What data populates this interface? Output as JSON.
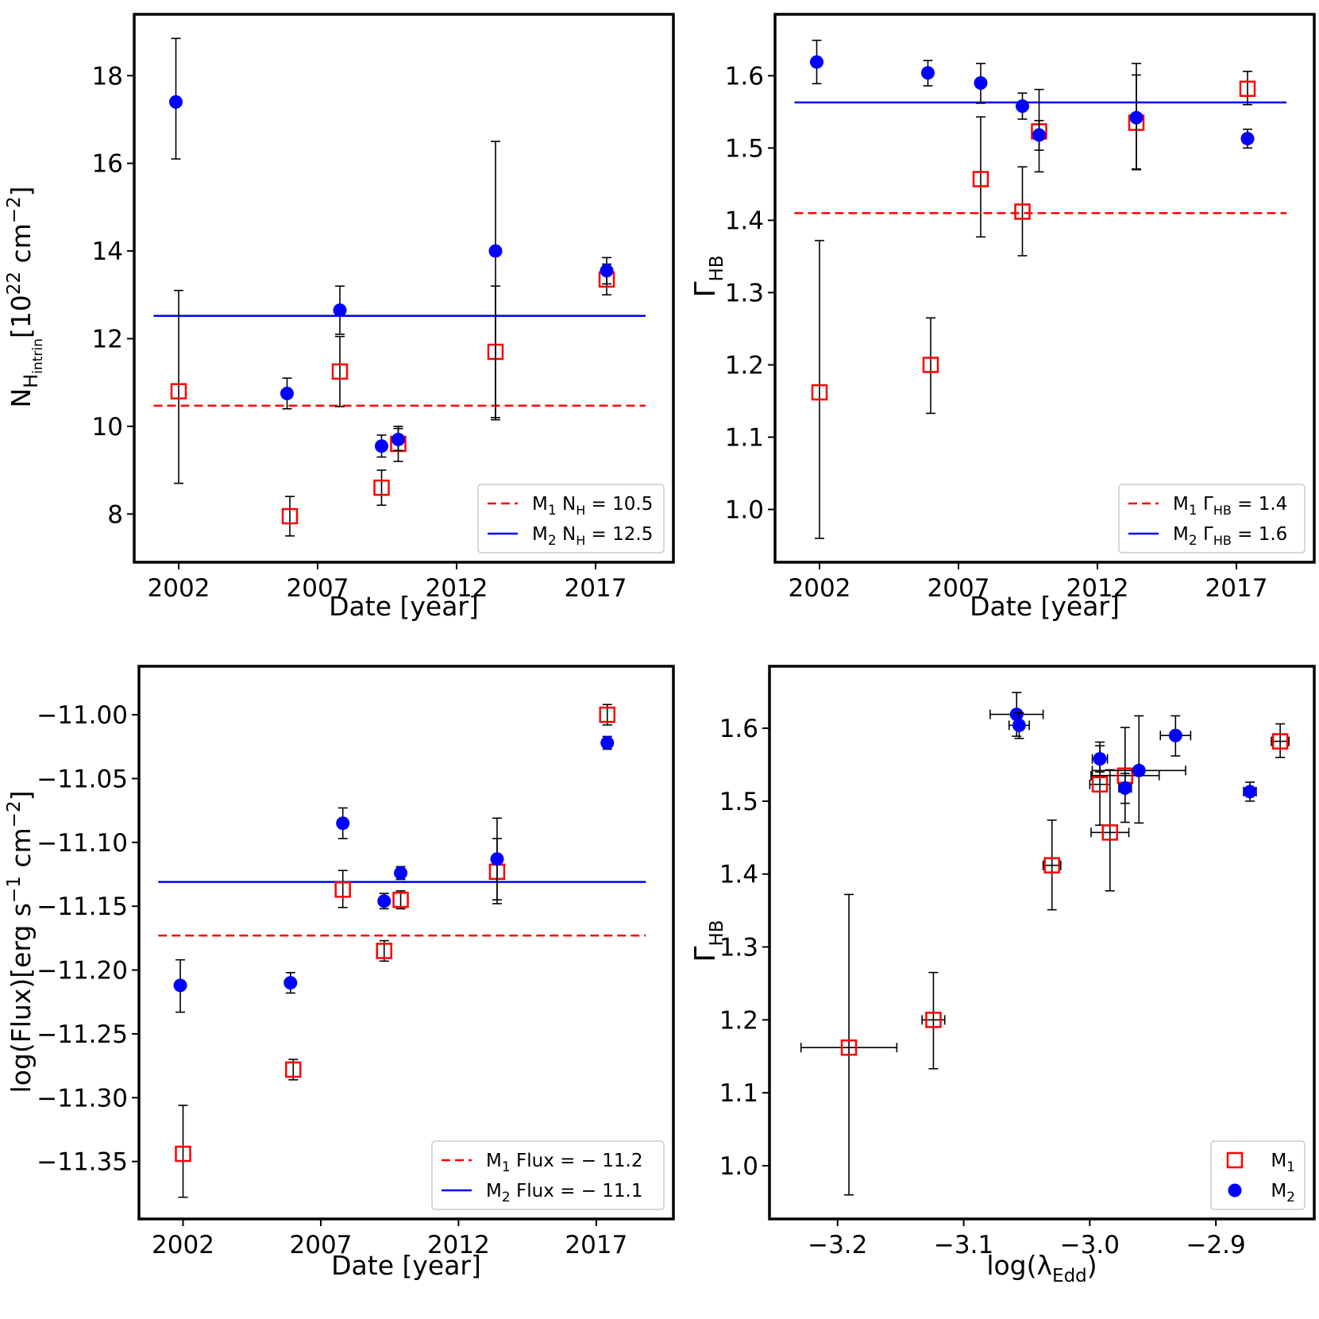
{
  "chart_data": [
    {
      "id": "nh",
      "type": "scatter",
      "xlabel": "Date [year]",
      "ylabel": "N_H_intrin [10^22 cm^-2]",
      "ylabel_parts": {
        "main": "N",
        "sub1": "H",
        "sub2": "intrin",
        "unit_pre": "[10",
        "unit_exp": "22",
        "unit_mid": " cm",
        "unit_exp2": "−2",
        "unit_post": "]"
      },
      "xlim": [
        2000.4,
        2019.8
      ],
      "ylim": [
        6.9,
        19.4
      ],
      "xticks": [
        2002,
        2007,
        2012,
        2017
      ],
      "xtick_labels": [
        "2002",
        "2007",
        "2012",
        "2017"
      ],
      "yticks": [
        8,
        10,
        12,
        14,
        16,
        18
      ],
      "ytick_labels": [
        "8",
        "10",
        "12",
        "14",
        "16",
        "18"
      ],
      "series": [
        {
          "name": "M1",
          "marker": "square",
          "color": "#ff0000",
          "points": [
            {
              "x": 2002.0,
              "y": 10.8,
              "ylo": 8.7,
              "yhi": 13.1
            },
            {
              "x": 2006.0,
              "y": 7.95,
              "ylo": 7.5,
              "yhi": 8.4
            },
            {
              "x": 2007.8,
              "y": 11.25,
              "ylo": 10.45,
              "yhi": 12.05
            },
            {
              "x": 2009.3,
              "y": 8.6,
              "ylo": 8.2,
              "yhi": 9.0
            },
            {
              "x": 2009.9,
              "y": 9.6,
              "ylo": 9.2,
              "yhi": 10.0
            },
            {
              "x": 2013.4,
              "y": 11.7,
              "ylo": 10.2,
              "yhi": 13.2
            },
            {
              "x": 2017.4,
              "y": 13.35,
              "ylo": 13.0,
              "yhi": 13.7
            }
          ]
        },
        {
          "name": "M2",
          "marker": "circle",
          "color": "#0000ff",
          "points": [
            {
              "x": 2001.9,
              "y": 17.4,
              "ylo": 16.1,
              "yhi": 18.85
            },
            {
              "x": 2005.9,
              "y": 10.75,
              "ylo": 10.4,
              "yhi": 11.1
            },
            {
              "x": 2007.8,
              "y": 12.65,
              "ylo": 12.1,
              "yhi": 13.2
            },
            {
              "x": 2009.3,
              "y": 9.55,
              "ylo": 9.3,
              "yhi": 9.8
            },
            {
              "x": 2009.9,
              "y": 9.7,
              "ylo": 9.45,
              "yhi": 9.95
            },
            {
              "x": 2013.4,
              "y": 14.0,
              "ylo": 10.15,
              "yhi": 16.5
            },
            {
              "x": 2017.4,
              "y": 13.55,
              "ylo": 13.25,
              "yhi": 13.85
            }
          ]
        }
      ],
      "hlines": [
        {
          "name": "M1",
          "y": 10.47,
          "color": "#ff0000",
          "style": "dashed",
          "x0": 2001.1,
          "x1": 2018.8
        },
        {
          "name": "M2",
          "y": 12.52,
          "color": "#0000ff",
          "style": "solid",
          "x0": 2001.1,
          "x1": 2018.8
        }
      ],
      "legend": {
        "position": "lower-right",
        "entries": [
          {
            "series": "M1",
            "style": "dashed",
            "color": "#ff0000",
            "text_pre": "M",
            "text_sub": "1",
            "text_mid": " N",
            "text_sub2": "H",
            "text_post": " = 10.5"
          },
          {
            "series": "M2",
            "style": "solid",
            "color": "#0000ff",
            "text_pre": "M",
            "text_sub": "2",
            "text_mid": " N",
            "text_sub2": "H",
            "text_post": " = 12.5"
          }
        ]
      }
    },
    {
      "id": "gamma",
      "type": "scatter",
      "xlabel": "Date [year]",
      "ylabel": "Γ_HB",
      "ylabel_parts": {
        "main": "Γ",
        "sub1": "HB"
      },
      "xlim": [
        2000.4,
        2019.8
      ],
      "ylim": [
        0.927,
        1.685
      ],
      "xticks": [
        2002,
        2007,
        2012,
        2017
      ],
      "xtick_labels": [
        "2002",
        "2007",
        "2012",
        "2017"
      ],
      "yticks": [
        1.0,
        1.1,
        1.2,
        1.3,
        1.4,
        1.5,
        1.6
      ],
      "ytick_labels": [
        "1.0",
        "1.1",
        "1.2",
        "1.3",
        "1.4",
        "1.5",
        "1.6"
      ],
      "series": [
        {
          "name": "M1",
          "marker": "square",
          "color": "#ff0000",
          "points": [
            {
              "x": 2002.0,
              "y": 1.162,
              "ylo": 0.96,
              "yhi": 1.372
            },
            {
              "x": 2006.0,
              "y": 1.2,
              "ylo": 1.133,
              "yhi": 1.265
            },
            {
              "x": 2007.8,
              "y": 1.457,
              "ylo": 1.377,
              "yhi": 1.543
            },
            {
              "x": 2009.3,
              "y": 1.412,
              "ylo": 1.351,
              "yhi": 1.474
            },
            {
              "x": 2009.9,
              "y": 1.523,
              "ylo": 1.467,
              "yhi": 1.581
            },
            {
              "x": 2013.4,
              "y": 1.535,
              "ylo": 1.471,
              "yhi": 1.601
            },
            {
              "x": 2017.4,
              "y": 1.582,
              "ylo": 1.56,
              "yhi": 1.606
            }
          ]
        },
        {
          "name": "M2",
          "marker": "circle",
          "color": "#0000ff",
          "points": [
            {
              "x": 2001.9,
              "y": 1.619,
              "ylo": 1.589,
              "yhi": 1.649
            },
            {
              "x": 2005.9,
              "y": 1.604,
              "ylo": 1.586,
              "yhi": 1.621
            },
            {
              "x": 2007.8,
              "y": 1.59,
              "ylo": 1.562,
              "yhi": 1.617
            },
            {
              "x": 2009.3,
              "y": 1.558,
              "ylo": 1.54,
              "yhi": 1.576
            },
            {
              "x": 2009.9,
              "y": 1.518,
              "ylo": 1.497,
              "yhi": 1.538
            },
            {
              "x": 2013.4,
              "y": 1.542,
              "ylo": 1.47,
              "yhi": 1.617
            },
            {
              "x": 2017.4,
              "y": 1.513,
              "ylo": 1.5,
              "yhi": 1.526
            }
          ]
        }
      ],
      "hlines": [
        {
          "name": "M1",
          "y": 1.41,
          "color": "#ff0000",
          "style": "dashed",
          "x0": 2001.1,
          "x1": 2018.8
        },
        {
          "name": "M2",
          "y": 1.563,
          "color": "#0000ff",
          "style": "solid",
          "x0": 2001.1,
          "x1": 2018.8
        }
      ],
      "legend": {
        "position": "lower-right",
        "entries": [
          {
            "series": "M1",
            "style": "dashed",
            "color": "#ff0000",
            "text_pre": "M",
            "text_sub": "1",
            "text_mid": " Γ",
            "text_sub2": "HB",
            "text_post": " = 1.4"
          },
          {
            "series": "M2",
            "style": "solid",
            "color": "#0000ff",
            "text_pre": "M",
            "text_sub": "2",
            "text_mid": " Γ",
            "text_sub2": "HB",
            "text_post": " = 1.6"
          }
        ]
      }
    },
    {
      "id": "flux",
      "type": "scatter",
      "xlabel": "Date [year]",
      "ylabel": "log(Flux)[erg s^-1 cm^-2]",
      "ylabel_parts": {
        "main": "log(Flux)[erg s",
        "exp1": "−1",
        "mid": " cm",
        "exp2": "−2",
        "post": "]"
      },
      "xlim": [
        2000.4,
        2019.8
      ],
      "ylim": [
        -11.395,
        -10.962
      ],
      "xticks": [
        2002,
        2007,
        2012,
        2017
      ],
      "xtick_labels": [
        "2002",
        "2007",
        "2012",
        "2017"
      ],
      "yticks": [
        -11.35,
        -11.3,
        -11.25,
        -11.2,
        -11.15,
        -11.1,
        -11.05,
        -11.0
      ],
      "ytick_labels": [
        "−11.35",
        "−11.30",
        "−11.25",
        "−11.20",
        "−11.15",
        "−11.10",
        "−11.05",
        "−11.00"
      ],
      "series": [
        {
          "name": "M1",
          "marker": "square",
          "color": "#ff0000",
          "points": [
            {
              "x": 2002.0,
              "y": -11.344,
              "ylo": -11.378,
              "yhi": -11.306
            },
            {
              "x": 2006.0,
              "y": -11.278,
              "ylo": -11.286,
              "yhi": -11.27
            },
            {
              "x": 2007.8,
              "y": -11.137,
              "ylo": -11.151,
              "yhi": -11.122
            },
            {
              "x": 2009.3,
              "y": -11.185,
              "ylo": -11.193,
              "yhi": -11.177
            },
            {
              "x": 2009.9,
              "y": -11.145,
              "ylo": -11.152,
              "yhi": -11.138
            },
            {
              "x": 2013.4,
              "y": -11.123,
              "ylo": -11.148,
              "yhi": -11.097
            },
            {
              "x": 2017.4,
              "y": -11.0,
              "ylo": -11.008,
              "yhi": -10.992
            }
          ]
        },
        {
          "name": "M2",
          "marker": "circle",
          "color": "#0000ff",
          "points": [
            {
              "x": 2001.9,
              "y": -11.212,
              "ylo": -11.233,
              "yhi": -11.192
            },
            {
              "x": 2005.9,
              "y": -11.21,
              "ylo": -11.218,
              "yhi": -11.202
            },
            {
              "x": 2007.8,
              "y": -11.085,
              "ylo": -11.097,
              "yhi": -11.073
            },
            {
              "x": 2009.3,
              "y": -11.146,
              "ylo": -11.152,
              "yhi": -11.14
            },
            {
              "x": 2009.9,
              "y": -11.124,
              "ylo": -11.129,
              "yhi": -11.119
            },
            {
              "x": 2013.4,
              "y": -11.113,
              "ylo": -11.145,
              "yhi": -11.081
            },
            {
              "x": 2017.4,
              "y": -11.022,
              "ylo": -11.027,
              "yhi": -11.017
            }
          ]
        }
      ],
      "hlines": [
        {
          "name": "M1",
          "y": -11.173,
          "color": "#ff0000",
          "style": "dashed",
          "x0": 2001.1,
          "x1": 2018.8
        },
        {
          "name": "M2",
          "y": -11.131,
          "color": "#0000ff",
          "style": "solid",
          "x0": 2001.1,
          "x1": 2018.8
        }
      ],
      "legend": {
        "position": "lower-right",
        "entries": [
          {
            "series": "M1",
            "style": "dashed",
            "color": "#ff0000",
            "text_pre": "M",
            "text_sub": "1",
            "text_mid": " Flux",
            "text_sub2": "",
            "text_post": " = − 11.2"
          },
          {
            "series": "M2",
            "style": "solid",
            "color": "#0000ff",
            "text_pre": "M",
            "text_sub": "2",
            "text_mid": " Flux",
            "text_sub2": "",
            "text_post": " = − 11.1"
          }
        ]
      }
    },
    {
      "id": "edd",
      "type": "scatter",
      "xlabel": "log(λ_Edd)",
      "xlabel_parts": {
        "main": "log(λ",
        "sub": "Edd",
        "post": ")"
      },
      "ylabel": "Γ_HB",
      "ylabel_parts": {
        "main": "Γ",
        "sub1": "HB"
      },
      "xlim": [
        -3.254,
        -2.822
      ],
      "ylim": [
        0.927,
        1.685
      ],
      "xticks": [
        -3.2,
        -3.1,
        -3.0,
        -2.9
      ],
      "xtick_labels": [
        "−3.2",
        "−3.1",
        "−3.0",
        "−2.9"
      ],
      "yticks": [
        1.0,
        1.1,
        1.2,
        1.3,
        1.4,
        1.5,
        1.6
      ],
      "ytick_labels": [
        "1.0",
        "1.1",
        "1.2",
        "1.3",
        "1.4",
        "1.5",
        "1.6"
      ],
      "series": [
        {
          "name": "M1",
          "marker": "square",
          "color": "#ff0000",
          "points": [
            {
              "x": -3.191,
              "y": 1.162,
              "ylo": 0.96,
              "yhi": 1.372,
              "xlo": -3.229,
              "xhi": -3.153
            },
            {
              "x": -3.124,
              "y": 1.2,
              "ylo": 1.133,
              "yhi": 1.265,
              "xlo": -3.133,
              "xhi": -3.115
            },
            {
              "x": -3.03,
              "y": 1.412,
              "ylo": 1.351,
              "yhi": 1.474,
              "xlo": -3.037,
              "xhi": -3.023
            },
            {
              "x": -2.992,
              "y": 1.523,
              "ylo": 1.467,
              "yhi": 1.581,
              "xlo": -3.0,
              "xhi": -2.984
            },
            {
              "x": -2.984,
              "y": 1.457,
              "ylo": 1.377,
              "yhi": 1.543,
              "xlo": -2.999,
              "xhi": -2.969
            },
            {
              "x": -2.972,
              "y": 1.535,
              "ylo": 1.471,
              "yhi": 1.601,
              "xlo": -2.999,
              "xhi": -2.945
            },
            {
              "x": -2.849,
              "y": 1.582,
              "ylo": 1.56,
              "yhi": 1.606,
              "xlo": -2.856,
              "xhi": -2.842
            }
          ]
        },
        {
          "name": "M2",
          "marker": "circle",
          "color": "#0000ff",
          "points": [
            {
              "x": -3.058,
              "y": 1.619,
              "ylo": 1.589,
              "yhi": 1.649,
              "xlo": -3.079,
              "xhi": -3.037
            },
            {
              "x": -3.056,
              "y": 1.604,
              "ylo": 1.586,
              "yhi": 1.621,
              "xlo": -3.064,
              "xhi": -3.048
            },
            {
              "x": -2.992,
              "y": 1.558,
              "ylo": 1.54,
              "yhi": 1.576,
              "xlo": -2.998,
              "xhi": -2.986
            },
            {
              "x": -2.972,
              "y": 1.518,
              "ylo": 1.497,
              "yhi": 1.538,
              "xlo": -2.977,
              "xhi": -2.967
            },
            {
              "x": -2.961,
              "y": 1.542,
              "ylo": 1.47,
              "yhi": 1.617,
              "xlo": -2.998,
              "xhi": -2.924
            },
            {
              "x": -2.932,
              "y": 1.59,
              "ylo": 1.562,
              "yhi": 1.617,
              "xlo": -2.944,
              "xhi": -2.92
            },
            {
              "x": -2.873,
              "y": 1.513,
              "ylo": 1.5,
              "yhi": 1.526,
              "xlo": -2.878,
              "xhi": -2.868
            }
          ]
        }
      ],
      "hlines": [],
      "legend": {
        "position": "lower-right",
        "entries": [
          {
            "series": "M1",
            "style": "square",
            "color": "#ff0000",
            "text_pre": "M",
            "text_sub": "1",
            "text_mid": "",
            "text_sub2": "",
            "text_post": ""
          },
          {
            "series": "M2",
            "style": "circle",
            "color": "#0000ff",
            "text_pre": "M",
            "text_sub": "2",
            "text_mid": "",
            "text_sub2": "",
            "text_post": ""
          }
        ]
      }
    }
  ]
}
